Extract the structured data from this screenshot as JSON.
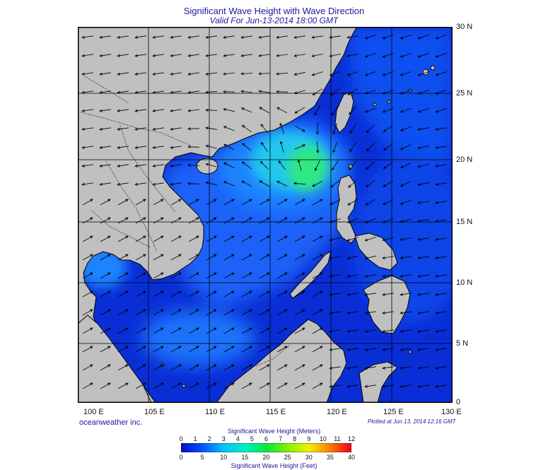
{
  "title": "Significant Wave Height with Wave Direction",
  "subtitle": "Valid For Jun-13-2014 18:00 GMT",
  "credit": "oceanweather inc.",
  "plotted": "Plotted at Jun 13, 2014 12:16 GMT",
  "lat_labels": [
    "30 N",
    "25 N",
    "20 N",
    "15 N",
    "10 N",
    "5 N",
    "0"
  ],
  "lon_labels": [
    "100 E",
    "105 E",
    "110 E",
    "115 E",
    "120 E",
    "125 E",
    "130 E"
  ],
  "legend": {
    "meters_title": "Significant Wave Height (Meters)",
    "feet_title": "Significant Wave Height (Feet)",
    "meters_ticks": [
      "0",
      "1",
      "2",
      "3",
      "4",
      "5",
      "6",
      "7",
      "8",
      "9",
      "10",
      "11",
      "12"
    ],
    "feet_ticks": [
      "0",
      "5",
      "10",
      "15",
      "20",
      "25",
      "30",
      "35",
      "40"
    ]
  },
  "colors": {
    "land": "#c0c0c0",
    "low_wave": "#0a30d8",
    "mid_wave": "#1e80ff",
    "high_wave": "#20e8e0",
    "peak_wave": "#30e870"
  }
}
